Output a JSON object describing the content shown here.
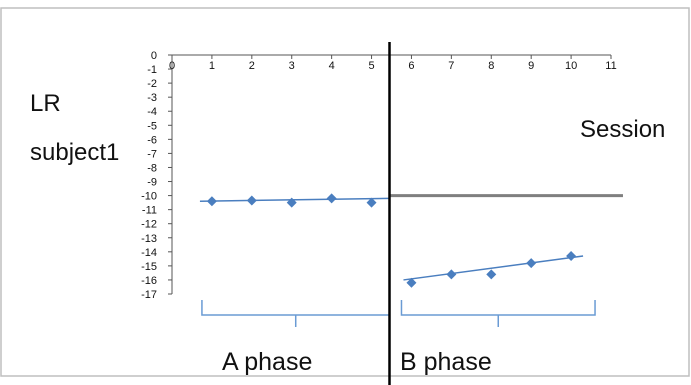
{
  "chart_data": {
    "type": "scatter",
    "xlabel": "Session",
    "ylabel": "LR",
    "ylabel_line2": "subject1",
    "xlim": [
      0,
      11
    ],
    "ylim": [
      -17,
      0
    ],
    "x_ticks": [
      0,
      1,
      2,
      3,
      4,
      5,
      6,
      7,
      8,
      9,
      10,
      11
    ],
    "x_tick_labels": [
      "0",
      "1",
      "2",
      "3",
      "4",
      "5",
      "6",
      "7",
      "8",
      "9",
      "10",
      "11"
    ],
    "y_ticks": [
      0,
      -1,
      -2,
      -3,
      -4,
      -5,
      -6,
      -7,
      -8,
      -9,
      -10,
      -11,
      -12,
      -13,
      -14,
      -15,
      -16,
      -17
    ],
    "y_tick_labels": [
      "0",
      "-1",
      "-2",
      "-3",
      "-4",
      "-5",
      "-6",
      "-7",
      "-8",
      "-9",
      "-10",
      "-11",
      "-12",
      "-13",
      "-14",
      "-15",
      "-16",
      "-17"
    ],
    "grid": false,
    "legend": "none",
    "phase_change_x": 5.45,
    "series": [
      {
        "phase": "A phase",
        "x": [
          1,
          2,
          3,
          4,
          5
        ],
        "y": [
          -10.4,
          -10.35,
          -10.5,
          -10.2,
          -10.5
        ],
        "trend": {
          "x": [
            0.7,
            5.45
          ],
          "y": [
            -10.4,
            -10.2
          ]
        }
      },
      {
        "phase": "B phase",
        "x": [
          6,
          7,
          8,
          9,
          10
        ],
        "y": [
          -16.2,
          -15.6,
          -15.6,
          -14.8,
          -14.3
        ],
        "trend": {
          "x": [
            5.8,
            10.3
          ],
          "y": [
            -16.0,
            -14.3
          ]
        }
      }
    ],
    "reference_line": {
      "x": [
        5.45,
        11.3
      ],
      "y": [
        -10,
        -10
      ]
    },
    "phase_labels": [
      "A phase",
      "B phase"
    ]
  },
  "colors": {
    "marker": "#4a7ebf",
    "trend": "#4a7ebf",
    "bracket": "#6a9bd4",
    "reference_line": "#7f7f7f",
    "axis": "#555555",
    "phase_line": "#000000",
    "frame": "#bfbfbf"
  }
}
